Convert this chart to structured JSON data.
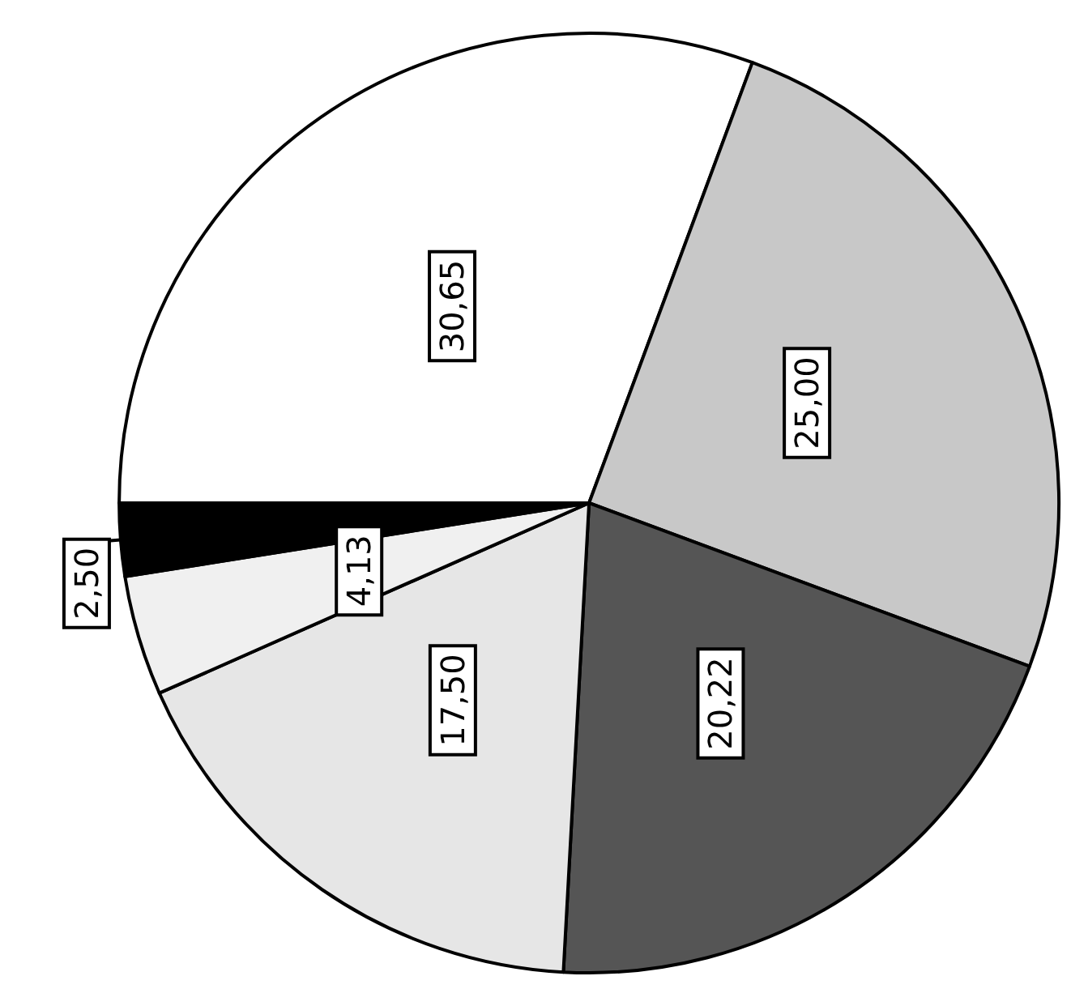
{
  "chart_data": {
    "type": "pie",
    "categories": [
      null,
      null,
      null,
      null,
      null,
      null
    ],
    "values": [
      30.65,
      25.0,
      20.22,
      17.5,
      4.13,
      2.5
    ],
    "value_labels": [
      "30,65",
      "25,00",
      "20,22",
      "17,50",
      "4,13",
      "2,50"
    ],
    "colors": [
      "#ffffff",
      "#c8c8c8",
      "#555555",
      "#e6e6e6",
      "#f0f0f0",
      "#000000"
    ]
  }
}
